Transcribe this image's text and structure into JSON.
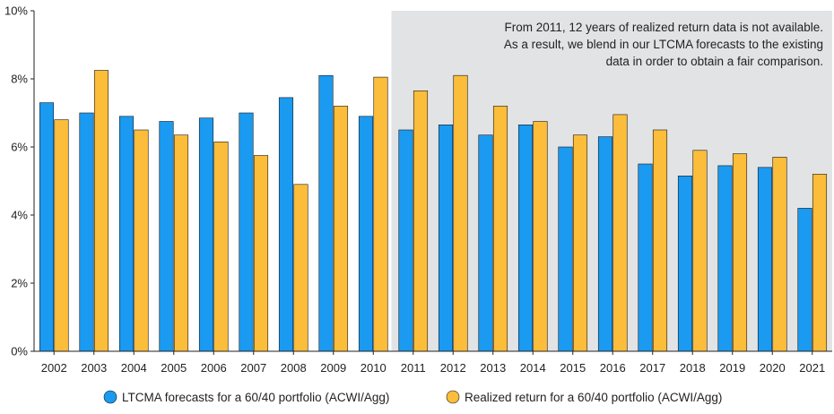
{
  "chart_data": {
    "type": "bar",
    "categories": [
      "2002",
      "2003",
      "2004",
      "2005",
      "2006",
      "2007",
      "2008",
      "2009",
      "2010",
      "2011",
      "2012",
      "2013",
      "2014",
      "2015",
      "2016",
      "2017",
      "2018",
      "2019",
      "2020",
      "2021"
    ],
    "series": [
      {
        "name": "LTCMA forecasts for a 60/40 portfolio (ACWI/Agg)",
        "color": "#1a9af0",
        "values": [
          7.3,
          7.0,
          6.9,
          6.75,
          6.85,
          7.0,
          7.45,
          8.1,
          6.9,
          6.5,
          6.65,
          6.35,
          6.65,
          6.0,
          6.3,
          5.5,
          5.15,
          5.45,
          5.4,
          4.2
        ]
      },
      {
        "name": "Realized return for a 60/40 portfolio (ACWI/Agg)",
        "color": "#fbbd3a",
        "values": [
          6.8,
          8.25,
          6.5,
          6.35,
          6.15,
          5.75,
          4.9,
          7.2,
          8.05,
          7.65,
          8.1,
          7.2,
          6.75,
          6.35,
          6.95,
          6.5,
          5.9,
          5.8,
          5.7,
          5.2
        ]
      }
    ],
    "ylim": [
      0,
      10
    ],
    "yticks": [
      0,
      2,
      4,
      6,
      8,
      10
    ],
    "ytick_labels": [
      "0%",
      "2%",
      "4%",
      "6%",
      "8%",
      "10%"
    ],
    "grid": false,
    "legend_position": "bottom",
    "shaded_region": {
      "from_category": "2011",
      "to_category": "2021",
      "color": "#e2e3e5",
      "annotation": [
        "From 2011, 12 years of realized return data is not available.",
        "As a result, we blend in our LTCMA forecasts to the existing",
        "data in order to obtain a fair comparison."
      ]
    }
  }
}
